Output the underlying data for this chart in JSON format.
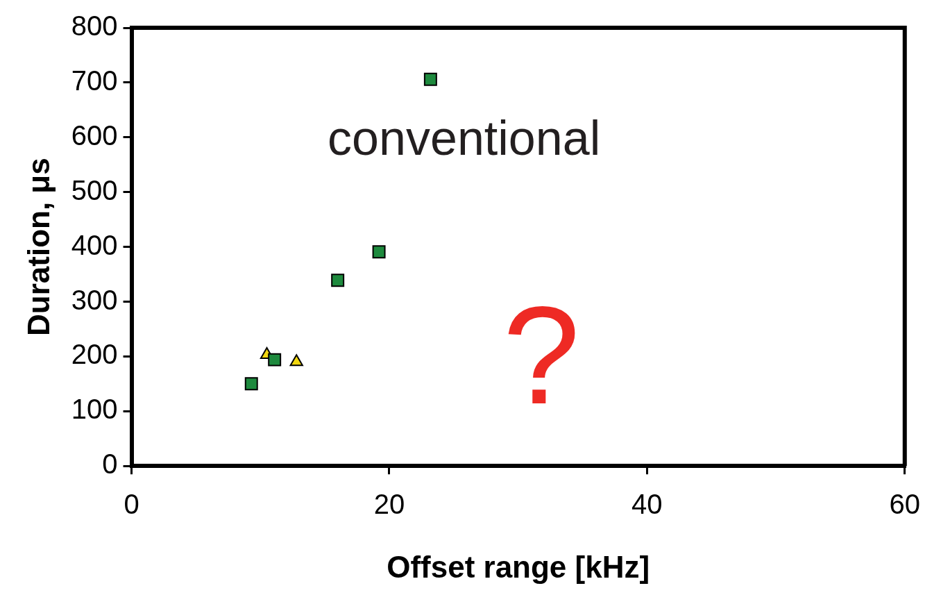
{
  "chart_data": {
    "type": "scatter",
    "xlabel": "Offset range [kHz]",
    "ylabel": "Duration, μs",
    "series": [
      {
        "color": "#1e8a3e",
        "marker": "square",
        "x": [
          9.3,
          11.1,
          16.0,
          19.2,
          23.2
        ],
        "values": [
          150,
          194,
          339,
          391,
          706
        ]
      },
      {
        "color": "#f2d70f",
        "marker": "triangle",
        "x": [
          10.5,
          12.8
        ],
        "values": [
          203,
          190
        ]
      }
    ],
    "xlim": [
      0,
      60
    ],
    "xticks": [
      0,
      20,
      40,
      60
    ],
    "ylim": [
      0,
      800
    ],
    "yticks": [
      0,
      100,
      200,
      300,
      400,
      500,
      600,
      700,
      800
    ],
    "grid": false,
    "legend": false,
    "annotations": [
      "conventional",
      "?"
    ]
  }
}
